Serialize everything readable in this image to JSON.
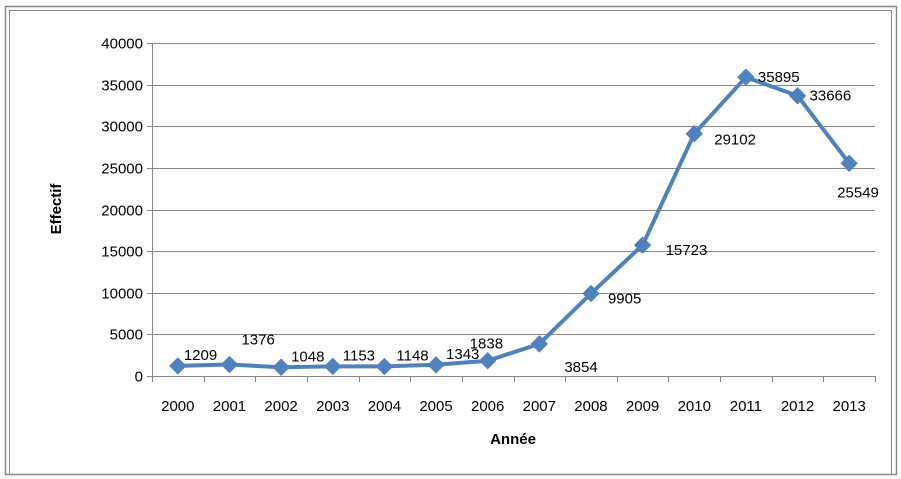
{
  "chart_data": {
    "type": "line",
    "xlabel": "Année",
    "ylabel": "Effectif",
    "categories": [
      "2000",
      "2001",
      "2002",
      "2003",
      "2004",
      "2005",
      "2006",
      "2007",
      "2008",
      "2009",
      "2010",
      "2011",
      "2012",
      "2013"
    ],
    "series": [
      {
        "values": [
          1209,
          1376,
          1048,
          1153,
          1148,
          1343,
          1838,
          3854,
          9905,
          15723,
          29102,
          35895,
          33666,
          25549
        ],
        "data_labels": [
          "1209",
          "1376",
          "1048",
          "1153",
          "1148",
          "1343",
          "1838",
          "3854",
          "9905",
          "15723",
          "29102",
          "35895",
          "33666",
          "25549"
        ],
        "color": "#4F81BD",
        "marker": "diamond"
      }
    ],
    "ylim": [
      0,
      40000
    ],
    "yticks": [
      0,
      5000,
      10000,
      15000,
      20000,
      25000,
      30000,
      35000,
      40000
    ],
    "ytick_labels": [
      "0",
      "5000",
      "10000",
      "15000",
      "20000",
      "25000",
      "30000",
      "35000",
      "40000"
    ],
    "grid": true,
    "legend": "none",
    "gridline_color": "#868686",
    "frame_color": "#888888"
  }
}
